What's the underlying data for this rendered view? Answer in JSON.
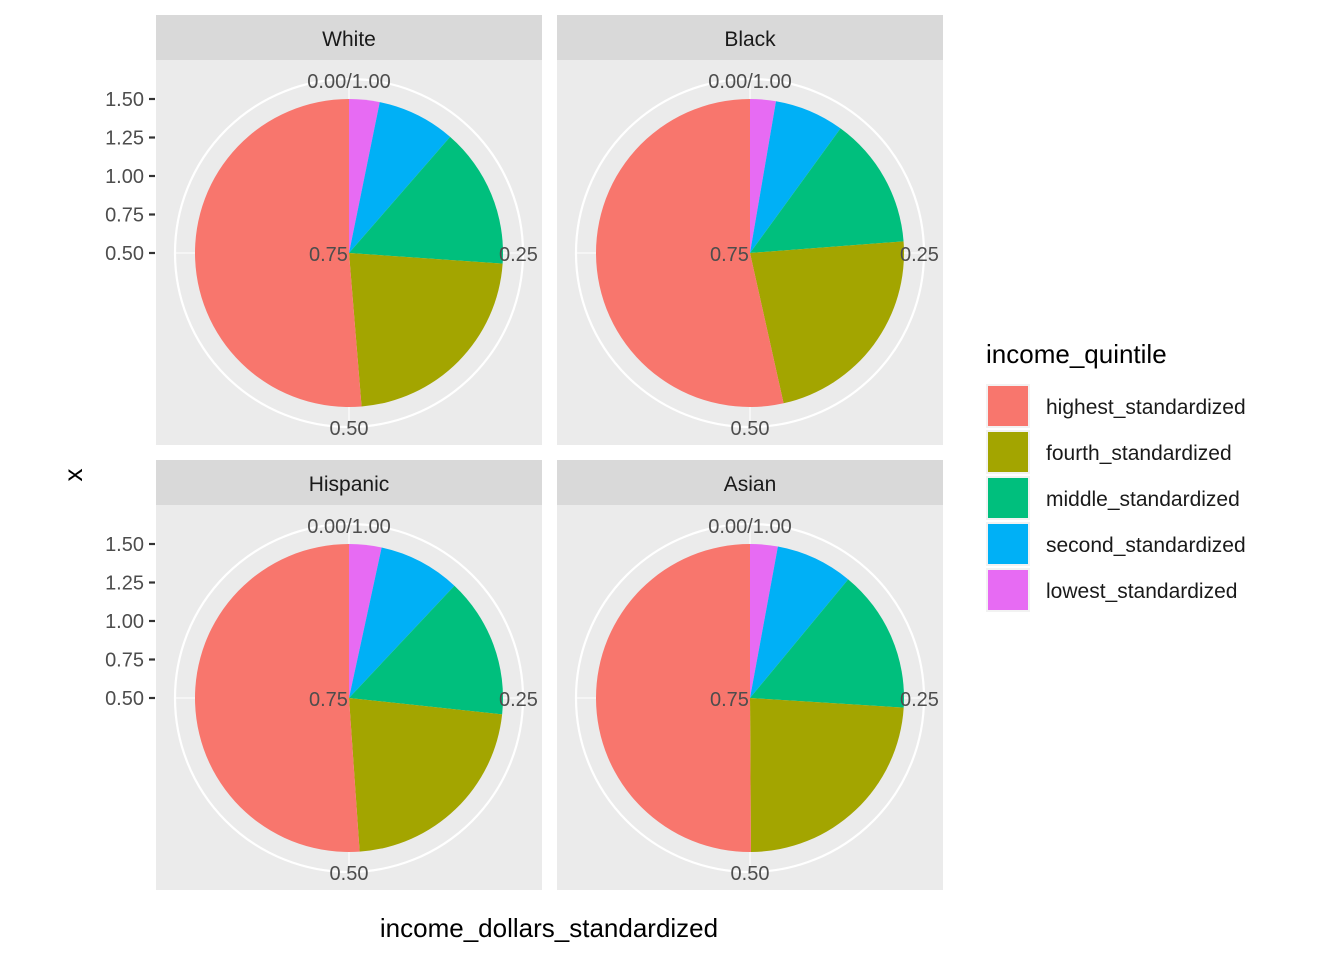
{
  "chart_data": {
    "type": "pie",
    "xlabel": "income_dollars_standardized",
    "ylabel": "x",
    "y_ticks": [
      "0.50",
      "0.75",
      "1.00",
      "1.25",
      "1.50"
    ],
    "theta_labels": [
      "0.00/1.00",
      "0.25",
      "0.50",
      "0.75"
    ],
    "legend": {
      "title": "income_quintile",
      "placement": "right",
      "entries": [
        {
          "name": "highest_standardized",
          "color": "#F8766D"
        },
        {
          "name": "fourth_standardized",
          "color": "#A3A500"
        },
        {
          "name": "middle_standardized",
          "color": "#00BF7D"
        },
        {
          "name": "second_standardized",
          "color": "#00B0F6"
        },
        {
          "name": "lowest_standardized",
          "color": "#E76BF3"
        }
      ]
    },
    "stack_order": [
      "lowest_standardized",
      "second_standardized",
      "middle_standardized",
      "fourth_standardized",
      "highest_standardized"
    ],
    "panels": [
      {
        "name": "White",
        "values": {
          "lowest_standardized": 0.032,
          "second_standardized": 0.082,
          "middle_standardized": 0.147,
          "fourth_standardized": 0.226,
          "highest_standardized": 0.513
        }
      },
      {
        "name": "Black",
        "values": {
          "lowest_standardized": 0.027,
          "second_standardized": 0.073,
          "middle_standardized": 0.138,
          "fourth_standardized": 0.227,
          "highest_standardized": 0.535
        }
      },
      {
        "name": "Hispanic",
        "values": {
          "lowest_standardized": 0.034,
          "second_standardized": 0.086,
          "middle_standardized": 0.147,
          "fourth_standardized": 0.222,
          "highest_standardized": 0.511
        }
      },
      {
        "name": "Asian",
        "values": {
          "lowest_standardized": 0.029,
          "second_standardized": 0.081,
          "middle_standardized": 0.15,
          "fourth_standardized": 0.239,
          "highest_standardized": 0.501
        }
      }
    ]
  }
}
